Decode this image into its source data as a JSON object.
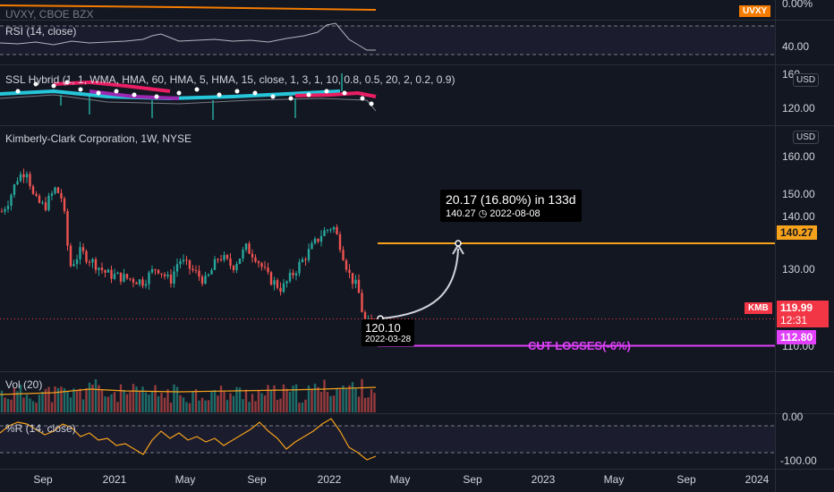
{
  "top_pane": {
    "title": "UVXY, CBOE BZX",
    "tick": "0.00%",
    "symbol_tag": "UVXY"
  },
  "rsi_pane": {
    "title": "RSI (14, close)",
    "tick": "40.00"
  },
  "ssl_pane": {
    "title": "SSL Hybrid (1, 1, WMA, HMA, 60, HMA, 5, HMA, 15, close, 1, 3, 1, 10, 0.8, 0.5, 20, 2, 0.2, 0.9)",
    "ticks": [
      "160",
      "120.00"
    ],
    "currency": "USD"
  },
  "main_pane": {
    "title": "Kimberly-Clark Corporation, 1W, NYSE",
    "currency": "USD",
    "ticks": [
      "160.00",
      "150.00",
      "140.00",
      "130.00",
      "110.00"
    ],
    "target_tag": "140.27",
    "price_symbol": "KMB",
    "price_tag": "119.99",
    "countdown": "12:31",
    "stop_tag": "112.80",
    "stop_label": "CUT LOSSES(-6%)",
    "measure": {
      "headline": "20.17 (16.80%) in 133d",
      "detail_price": "140.27",
      "detail_date": "2022-08-08"
    },
    "entry": {
      "price": "120.10",
      "date": "2022-03-28"
    },
    "colors": {
      "up": "#26a69a",
      "down": "#ef5350",
      "target": "#f7a21b",
      "stop": "#e040fb",
      "symbol": "#f23645"
    }
  },
  "vol_pane": {
    "title": "Vol (20)"
  },
  "wr_pane": {
    "title": "%R (14, close)",
    "ticks": [
      "0.00",
      "-100.00"
    ]
  },
  "time_axis": {
    "labels": [
      "Sep",
      "2021",
      "May",
      "Sep",
      "2022",
      "May",
      "Sep",
      "2023",
      "May",
      "Sep",
      "2024"
    ]
  }
}
